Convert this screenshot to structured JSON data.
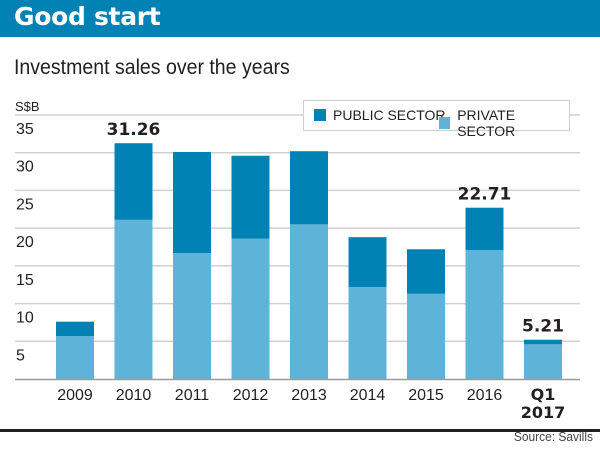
{
  "header": {
    "title": "Good start"
  },
  "chart_data": {
    "type": "bar",
    "stacked": true,
    "title": "Investment sales over the years",
    "ylabel": "S$B",
    "xlabel": "",
    "ylim": [
      0,
      35
    ],
    "yticks": [
      5,
      10,
      15,
      20,
      25,
      30,
      35
    ],
    "grid": true,
    "legend_position": "top-right",
    "categories": [
      "2009",
      "2010",
      "2011",
      "2012",
      "2013",
      "2014",
      "2015",
      "2016",
      "Q1 2017"
    ],
    "series": [
      {
        "name": "PRIVATE SECTOR",
        "color": "#5eb4d8",
        "values": [
          5.7,
          21.1,
          16.7,
          18.6,
          20.5,
          12.2,
          11.3,
          17.1,
          4.6
        ]
      },
      {
        "name": "PUBLIC SECTOR",
        "color": "#0082b5",
        "values": [
          1.9,
          10.16,
          13.4,
          11.0,
          9.7,
          6.6,
          5.9,
          5.61,
          0.61
        ]
      }
    ],
    "annotations": [
      {
        "category": "2010",
        "label": "31.26"
      },
      {
        "category": "2016",
        "label": "22.71"
      },
      {
        "category": "Q1 2017",
        "label": "5.21"
      }
    ],
    "bold_categories": [
      "Q1 2017"
    ]
  },
  "legend": {
    "items": [
      {
        "label": "PUBLIC SECTOR",
        "color": "#0082b5"
      },
      {
        "label": "PRIVATE SECTOR",
        "color": "#5eb4d8"
      }
    ]
  },
  "footer": {
    "source": "Source: Savills"
  }
}
